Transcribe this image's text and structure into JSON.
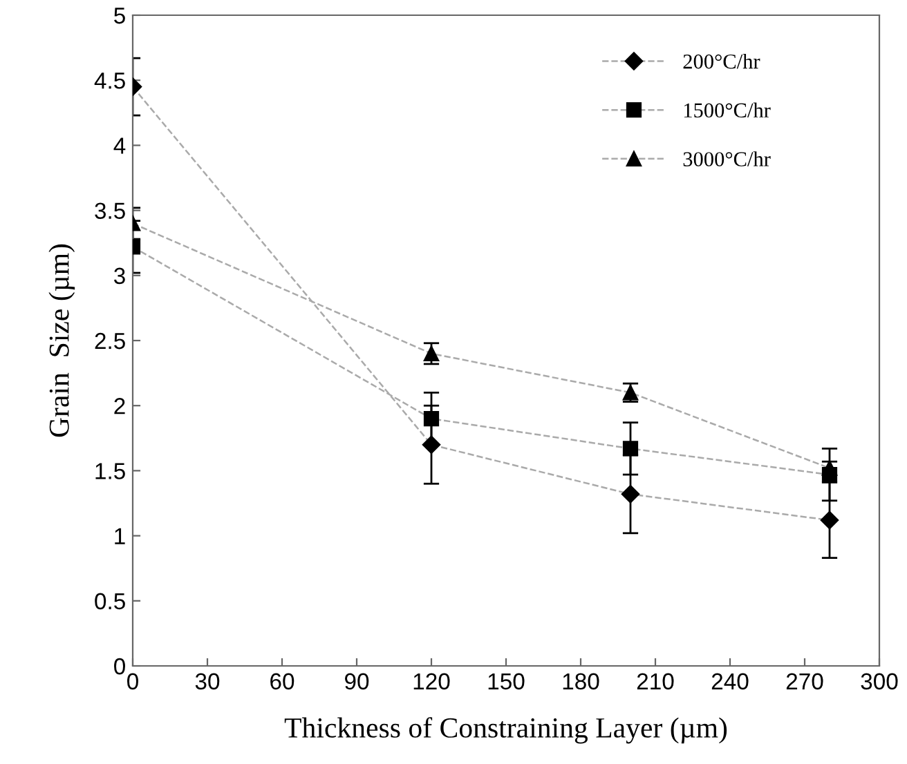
{
  "chart_data": {
    "type": "line",
    "xlabel": "Thickness of Constraining Layer (µm)",
    "ylabel": "Grain  Size (µm)",
    "x": [
      0,
      120,
      200,
      280
    ],
    "series": [
      {
        "name": "200°C/hr",
        "color": "#000000",
        "marker": "diamond",
        "values": [
          4.45,
          1.7,
          1.32,
          1.12
        ],
        "errors": [
          0.22,
          0.3,
          0.3,
          0.29
        ]
      },
      {
        "name": "1500°C/hr",
        "color": "#000000",
        "marker": "square",
        "values": [
          3.22,
          1.9,
          1.67,
          1.47
        ],
        "errors": [
          0.2,
          0.2,
          0.2,
          0.2
        ]
      },
      {
        "name": "3000°C/hr",
        "color": "#000000",
        "marker": "triangle",
        "values": [
          3.4,
          2.4,
          2.1,
          1.52
        ],
        "errors": [
          0.12,
          0.08,
          0.07,
          0.05
        ]
      }
    ],
    "line_style": "dashed",
    "xlim": [
      0,
      300
    ],
    "xticks": [
      0,
      30,
      60,
      90,
      120,
      150,
      180,
      210,
      240,
      270,
      300
    ],
    "ylim": [
      0,
      5
    ],
    "yticks": [
      0,
      0.5,
      1,
      1.5,
      2,
      2.5,
      3,
      3.5,
      4,
      4.5,
      5
    ],
    "grid": false,
    "legend": "top right"
  }
}
